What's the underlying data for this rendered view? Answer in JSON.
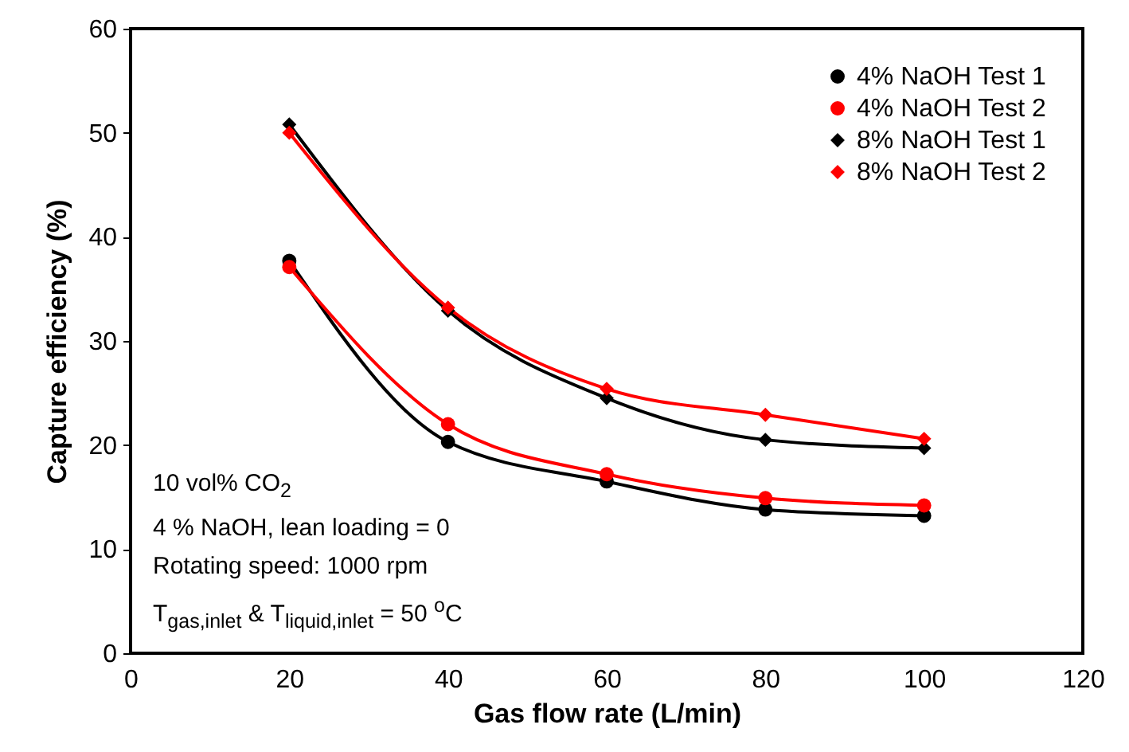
{
  "chart_data": {
    "type": "line",
    "xlabel": "Gas flow rate  (L/min)",
    "ylabel": "Capture efficiency (%)",
    "x": [
      20,
      40,
      60,
      80,
      100
    ],
    "series": [
      {
        "name": "4% NaOH Test 1",
        "color": "#000000",
        "marker": "circle",
        "values": [
          37.7,
          20.3,
          16.5,
          13.8,
          13.2
        ]
      },
      {
        "name": "4% NaOH Test 2",
        "color": "#ff0000",
        "marker": "circle",
        "values": [
          37.1,
          22.0,
          17.2,
          14.9,
          14.2
        ]
      },
      {
        "name": "8% NaOH Test 1",
        "color": "#000000",
        "marker": "diamond",
        "values": [
          50.8,
          32.9,
          24.5,
          20.5,
          19.7
        ]
      },
      {
        "name": "8% NaOH Test 2",
        "color": "#ff0000",
        "marker": "diamond",
        "values": [
          50.0,
          33.2,
          25.4,
          22.9,
          20.6
        ]
      }
    ],
    "xlim": [
      0,
      120
    ],
    "xticks": [
      0,
      20,
      40,
      60,
      80,
      100,
      120
    ],
    "ylim": [
      0,
      60
    ],
    "yticks": [
      0,
      10,
      20,
      30,
      40,
      50,
      60
    ],
    "legend": "top right",
    "line_style": "solid",
    "annotations": [
      "10 vol% CO$_{2}$",
      "4 % NaOH, lean loading = 0",
      "Rotating speed: 1000 rpm",
      "T$_{gas,inlet}$ & T$_{liquid,inlet}$ = 50 $^{o}$C"
    ]
  }
}
